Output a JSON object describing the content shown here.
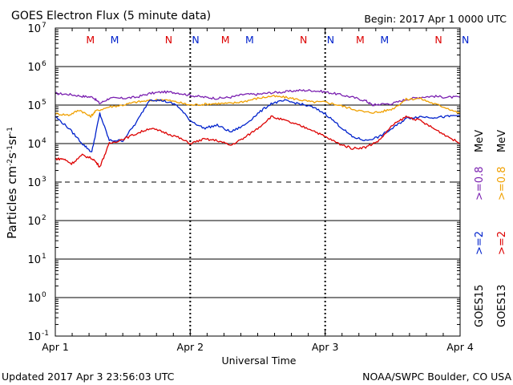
{
  "title": "GOES Electron Flux (5 minute data)",
  "begin": "Begin: 2017 Apr 1 0000 UTC",
  "updated": "Updated 2017 Apr  3 23:56:03 UTC",
  "credit": "NOAA/SWPC Boulder, CO USA",
  "colors": {
    "goes15_gt2": "#0022cc",
    "goes15_gt08": "#7a1fb0",
    "goes13_gt2": "#dd0000",
    "goes13_gt08": "#f0a000",
    "axis": "#000000"
  },
  "legend": {
    "goes15_label": "GOES15",
    "goes13_label": "GOES13",
    "g15_gt2": ">=2",
    "g15_gt08": ">=0.8",
    "g13_gt2": ">=2",
    "g13_gt08": ">=0.8",
    "unit1": "MeV",
    "unit2": "MeV"
  },
  "markers": [
    {
      "label": "M",
      "day": 0.26,
      "color": "#dd0000"
    },
    {
      "label": "M",
      "day": 0.44,
      "color": "#0022cc"
    },
    {
      "label": "N",
      "day": 0.84,
      "color": "#dd0000"
    },
    {
      "label": "N",
      "day": 1.04,
      "color": "#0022cc"
    },
    {
      "label": "M",
      "day": 1.26,
      "color": "#dd0000"
    },
    {
      "label": "M",
      "day": 1.44,
      "color": "#0022cc"
    },
    {
      "label": "N",
      "day": 1.84,
      "color": "#dd0000"
    },
    {
      "label": "N",
      "day": 2.04,
      "color": "#0022cc"
    },
    {
      "label": "M",
      "day": 2.26,
      "color": "#dd0000"
    },
    {
      "label": "M",
      "day": 2.44,
      "color": "#0022cc"
    },
    {
      "label": "N",
      "day": 2.84,
      "color": "#dd0000"
    },
    {
      "label": "N",
      "day": 3.04,
      "color": "#0022cc"
    }
  ],
  "chart_data": {
    "type": "line",
    "title": "GOES Electron Flux (5 minute data)",
    "xlabel": "Universal Time",
    "ylabel": "Particles cm-2s-1sr-1",
    "ylabel_parts": [
      "Particles cm",
      "-2",
      "s",
      "-1",
      "sr",
      "-1"
    ],
    "yscale": "log",
    "ylim_exp": [
      -1,
      7
    ],
    "xlim_days": [
      0,
      3
    ],
    "x_ticks": [
      "Apr 1",
      "Apr 2",
      "Apr 3",
      "Apr 4"
    ],
    "y_ticks": [
      {
        "base": "10",
        "exp": "7"
      },
      {
        "base": "10",
        "exp": "6"
      },
      {
        "base": "10",
        "exp": "5"
      },
      {
        "base": "10",
        "exp": "4"
      },
      {
        "base": "10",
        "exp": "3"
      },
      {
        "base": "10",
        "exp": "2"
      },
      {
        "base": "10",
        "exp": "1"
      },
      {
        "base": "10",
        "exp": "0"
      },
      {
        "base": "10",
        "exp": "-1"
      }
    ],
    "solid_gridlines_exp": [
      6,
      5,
      4,
      2,
      1,
      0
    ],
    "dashed_gridlines_exp": [
      3
    ],
    "series": [
      {
        "name": "GOES15 >=0.8 MeV",
        "color": "#7a1fb0",
        "x_days": [
          0,
          0.1,
          0.2,
          0.28,
          0.33,
          0.4,
          0.5,
          0.6,
          0.7,
          0.8,
          0.9,
          1.0,
          1.1,
          1.2,
          1.3,
          1.4,
          1.5,
          1.6,
          1.7,
          1.8,
          1.9,
          2.0,
          2.1,
          2.2,
          2.3,
          2.35,
          2.4,
          2.5,
          2.6,
          2.7,
          2.8,
          2.9,
          3.0
        ],
        "values": [
          200000.0,
          190000.0,
          170000.0,
          160000.0,
          110000.0,
          150000.0,
          150000.0,
          160000.0,
          200000.0,
          220000.0,
          210000.0,
          180000.0,
          160000.0,
          150000.0,
          160000.0,
          190000.0,
          190000.0,
          210000.0,
          220000.0,
          240000.0,
          240000.0,
          220000.0,
          190000.0,
          160000.0,
          130000.0,
          100000.0,
          105000.0,
          110000.0,
          140000.0,
          160000.0,
          170000.0,
          160000.0,
          160000.0
        ]
      },
      {
        "name": "GOES13 >=0.8 MeV",
        "color": "#f0a000",
        "x_days": [
          0,
          0.1,
          0.18,
          0.26,
          0.3,
          0.4,
          0.5,
          0.6,
          0.7,
          0.8,
          0.9,
          1.0,
          1.1,
          1.2,
          1.3,
          1.4,
          1.5,
          1.6,
          1.7,
          1.8,
          1.9,
          2.0,
          2.1,
          2.2,
          2.3,
          2.4,
          2.5,
          2.6,
          2.7,
          2.8,
          2.9,
          3.0
        ],
        "values": [
          60000.0,
          55000.0,
          75000.0,
          50000.0,
          70000.0,
          90000.0,
          100000.0,
          120000.0,
          130000.0,
          140000.0,
          120000.0,
          100000.0,
          105000.0,
          110000.0,
          110000.0,
          125000.0,
          150000.0,
          170000.0,
          160000.0,
          140000.0,
          120000.0,
          120000.0,
          100000.0,
          80000.0,
          65000.0,
          65000.0,
          80000.0,
          140000.0,
          150000.0,
          110000.0,
          85000.0,
          60000.0
        ]
      },
      {
        "name": "GOES15 >=2 MeV",
        "color": "#0022cc",
        "x_days": [
          0,
          0.1,
          0.2,
          0.27,
          0.33,
          0.4,
          0.5,
          0.6,
          0.7,
          0.8,
          0.9,
          1.0,
          1.1,
          1.2,
          1.3,
          1.4,
          1.5,
          1.6,
          1.7,
          1.8,
          1.9,
          2.0,
          2.1,
          2.2,
          2.3,
          2.4,
          2.5,
          2.6,
          2.7,
          2.8,
          2.9,
          3.0
        ],
        "values": [
          50000.0,
          25000.0,
          10000.0,
          6000.0,
          60000.0,
          12000.0,
          12000.0,
          35000.0,
          140000.0,
          130000.0,
          100000.0,
          40000.0,
          25000.0,
          30000.0,
          20000.0,
          30000.0,
          60000.0,
          110000.0,
          130000.0,
          110000.0,
          90000.0,
          60000.0,
          30000.0,
          15000.0,
          12000.0,
          15000.0,
          25000.0,
          45000.0,
          50000.0,
          48000.0,
          50000.0,
          55000.0
        ]
      },
      {
        "name": "GOES13 >=2 MeV",
        "color": "#dd0000",
        "x_days": [
          0,
          0.06,
          0.12,
          0.2,
          0.28,
          0.33,
          0.4,
          0.5,
          0.6,
          0.7,
          0.8,
          0.9,
          1.0,
          1.1,
          1.2,
          1.3,
          1.4,
          1.5,
          1.6,
          1.7,
          1.8,
          1.9,
          2.0,
          2.1,
          2.2,
          2.3,
          2.4,
          2.5,
          2.6,
          2.7,
          2.8,
          2.9,
          3.0
        ],
        "values": [
          4000.0,
          4000.0,
          3000.0,
          5000.0,
          4000.0,
          2500.0,
          10000.0,
          13000.0,
          18000.0,
          25000.0,
          20000.0,
          15000.0,
          10000.0,
          13000.0,
          12000.0,
          9000.0,
          14000.0,
          25000.0,
          50000.0,
          40000.0,
          30000.0,
          23000.0,
          15000.0,
          10000.0,
          7500.0,
          8000.0,
          12000.0,
          30000.0,
          50000.0,
          40000.0,
          25000.0,
          16000.0,
          10000.0
        ]
      }
    ]
  }
}
